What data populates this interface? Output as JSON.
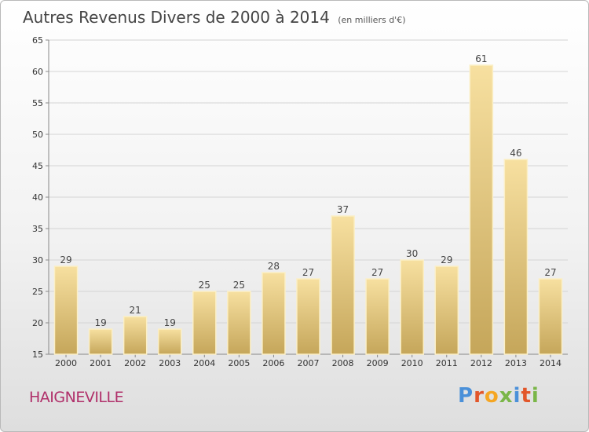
{
  "title": "Autres Revenus Divers de 2000 à 2014",
  "unit": "(en milliers d'€)",
  "place": "HAIGNEVILLE",
  "logo": {
    "text": "Proxiti",
    "colors": [
      "#4a90d9",
      "#e2562a",
      "#f5a623",
      "#7ab648",
      "#4a90d9",
      "#e2562a",
      "#7ab648"
    ]
  },
  "colors": {
    "bar_light": "#f6dd96",
    "bar_dark": "#c9a95c",
    "grid": "#d4d4d4",
    "place": "#b0306a"
  },
  "chart_data": {
    "type": "bar",
    "categories": [
      "2000",
      "2001",
      "2002",
      "2003",
      "2004",
      "2005",
      "2006",
      "2007",
      "2008",
      "2009",
      "2010",
      "2011",
      "2012",
      "2013",
      "2014"
    ],
    "values": [
      29,
      19,
      21,
      19,
      25,
      25,
      28,
      27,
      37,
      27,
      30,
      29,
      61,
      46,
      27
    ],
    "ylim": [
      15,
      65
    ],
    "yticks": [
      15,
      20,
      25,
      30,
      35,
      40,
      45,
      50,
      55,
      60,
      65
    ],
    "grid": true
  }
}
